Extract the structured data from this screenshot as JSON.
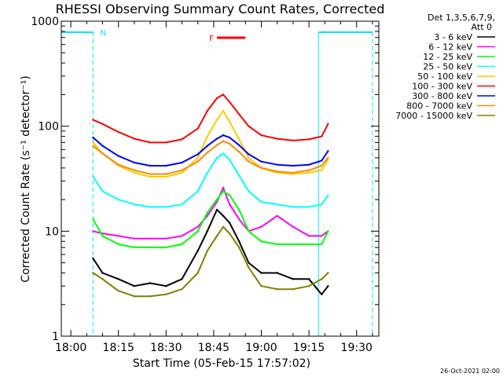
{
  "chart_data": {
    "type": "line",
    "title": "RHESSI Observing Summary Count Rates, Corrected",
    "xlabel": "Start Time (05-Feb-15 17:57:02)",
    "ylabel": "Corrected Count Rate (s⁻¹ detector⁻¹)",
    "yscale": "log",
    "ylim": [
      1,
      1000
    ],
    "xlim": [
      "17:57",
      "19:37"
    ],
    "xticks": [
      "18:00",
      "18:15",
      "18:30",
      "18:45",
      "19:00",
      "19:15",
      "19:30"
    ],
    "yticks": [
      "1",
      "10",
      "100",
      "1000"
    ],
    "detector_header": "Det 1,3,5,6,7,9,",
    "attenuator_header": "Att 0",
    "footer_date": "26-Oct-2021 02:00",
    "flags": [
      {
        "label": "N",
        "color": "#00e5ff",
        "intervals": [
          [
            "17:57",
            "18:07"
          ],
          [
            "19:18",
            "19:35"
          ]
        ]
      },
      {
        "label": "F",
        "color": "#ff0000",
        "intervals": [
          [
            "18:46",
            "18:55"
          ]
        ]
      }
    ],
    "x": [
      "18:07",
      "18:10",
      "18:15",
      "18:20",
      "18:25",
      "18:30",
      "18:35",
      "18:40",
      "18:43",
      "18:46",
      "18:48",
      "18:50",
      "18:53",
      "18:56",
      "19:00",
      "19:05",
      "19:10",
      "19:15",
      "19:19",
      "19:21"
    ],
    "series": [
      {
        "name": "3 - 6 keV",
        "color": "#000000",
        "values": [
          5.5,
          4.0,
          3.5,
          3.0,
          3.2,
          3.0,
          3.5,
          6.5,
          10,
          16,
          14,
          12,
          8,
          5,
          4,
          4,
          3.5,
          3.5,
          2.5,
          3.0
        ]
      },
      {
        "name": "6 - 12 keV",
        "color": "#ff00ff",
        "values": [
          10,
          9.5,
          9,
          8.5,
          8.5,
          8.5,
          9,
          11,
          14,
          19,
          26,
          18,
          13,
          10,
          11,
          14,
          11,
          9,
          9,
          10
        ]
      },
      {
        "name": "12 - 25 keV",
        "color": "#00ff00",
        "values": [
          13,
          9,
          7.5,
          7,
          7,
          7,
          7.5,
          10,
          15,
          20,
          24,
          22,
          16,
          10,
          8,
          7.5,
          7.5,
          7.5,
          7.5,
          10
        ]
      },
      {
        "name": "25 - 50 keV",
        "color": "#00ffff",
        "values": [
          33,
          24,
          20,
          18,
          17,
          17,
          18,
          24,
          36,
          50,
          55,
          48,
          34,
          24,
          19,
          18,
          17,
          17,
          18,
          22
        ]
      },
      {
        "name": "50 - 100 keV",
        "color": "#ffcc00",
        "values": [
          70,
          55,
          42,
          36,
          33,
          33,
          36,
          50,
          80,
          115,
          140,
          110,
          75,
          50,
          40,
          36,
          35,
          36,
          38,
          48
        ]
      },
      {
        "name": "100 - 300 keV",
        "color": "#ff0000",
        "values": [
          115,
          105,
          88,
          76,
          70,
          70,
          75,
          95,
          140,
          185,
          200,
          170,
          130,
          100,
          82,
          76,
          73,
          75,
          80,
          105
        ]
      },
      {
        "name": "300 - 800 keV",
        "color": "#0000ff",
        "values": [
          78,
          65,
          52,
          45,
          42,
          42,
          45,
          54,
          65,
          76,
          82,
          78,
          66,
          54,
          46,
          43,
          42,
          43,
          47,
          58
        ]
      },
      {
        "name": "800 - 7000 keV",
        "color": "#ff8800",
        "values": [
          65,
          55,
          43,
          38,
          35,
          35,
          38,
          46,
          56,
          66,
          72,
          68,
          57,
          46,
          40,
          37,
          36,
          38,
          42,
          50
        ]
      },
      {
        "name": "7000 - 15000 keV",
        "color": "#808000",
        "values": [
          4.0,
          3.5,
          2.7,
          2.4,
          2.4,
          2.5,
          2.8,
          4.0,
          6.5,
          9,
          11,
          9.5,
          7,
          4.5,
          3.0,
          2.8,
          2.8,
          3.0,
          3.5,
          4.0
        ]
      }
    ]
  }
}
